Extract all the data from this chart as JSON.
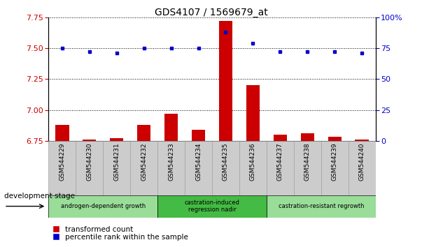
{
  "title": "GDS4107 / 1569679_at",
  "samples": [
    "GSM544229",
    "GSM544230",
    "GSM544231",
    "GSM544232",
    "GSM544233",
    "GSM544234",
    "GSM544235",
    "GSM544236",
    "GSM544237",
    "GSM544238",
    "GSM544239",
    "GSM544240"
  ],
  "red_values": [
    6.88,
    6.76,
    6.77,
    6.88,
    6.97,
    6.84,
    7.72,
    7.2,
    6.8,
    6.81,
    6.78,
    6.76
  ],
  "blue_values": [
    75,
    72,
    71,
    75,
    75,
    75,
    88,
    79,
    72,
    72,
    72,
    71
  ],
  "ylim_left": [
    6.75,
    7.75
  ],
  "ylim_right": [
    0,
    100
  ],
  "yticks_left": [
    6.75,
    7.0,
    7.25,
    7.5,
    7.75
  ],
  "yticks_right": [
    0,
    25,
    50,
    75,
    100
  ],
  "red_color": "#cc0000",
  "blue_color": "#0000cc",
  "groups": [
    {
      "label": "androgen-dependent growth",
      "start": 0,
      "end": 3,
      "color": "#99dd99"
    },
    {
      "label": "castration-induced\nregression nadir",
      "start": 4,
      "end": 7,
      "color": "#44bb44"
    },
    {
      "label": "castration-resistant regrowth",
      "start": 8,
      "end": 11,
      "color": "#99dd99"
    }
  ],
  "dev_stage_label": "development stage",
  "legend_red": "transformed count",
  "legend_blue": "percentile rank within the sample",
  "tick_label_color_left": "#cc0000",
  "tick_label_color_right": "#0000cc",
  "title_fontsize": 10,
  "gray_box_color": "#cccccc",
  "gray_box_edge": "#999999"
}
